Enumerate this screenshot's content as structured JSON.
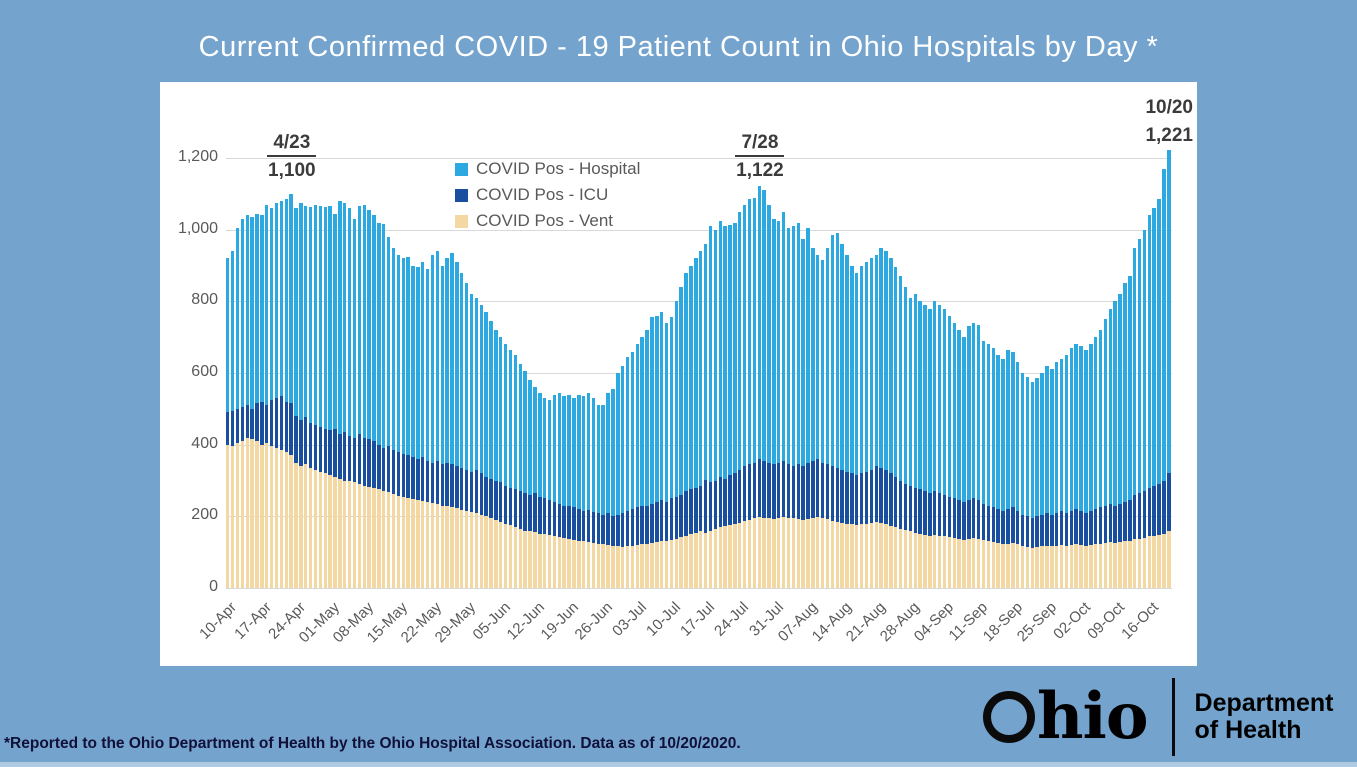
{
  "title": "Current Confirmed COVID - 19 Patient Count in Ohio Hospitals by Day *",
  "footer": {
    "note": "*Reported to the Ohio Department of Health by the Ohio Hospital Association. Data as of 10/20/2020."
  },
  "logo": {
    "brand_o": "O",
    "brand_rest": "hio",
    "dept_line1": "Department",
    "dept_line2": "of Health"
  },
  "colors": {
    "background": "#74A3CE",
    "panel": "#FFFFFF",
    "hospital": "#2CA9E1",
    "icu": "#1A4E9E",
    "vent": "#F3D8A3",
    "gridline": "#D9D9D9",
    "axis_text": "#595959",
    "annotation_text": "#3B3B3B"
  },
  "chart_data": {
    "type": "bar",
    "title": "Current Confirmed COVID - 19 Patient Count in Ohio Hospitals by Day *",
    "xlabel": "",
    "ylabel": "",
    "ylim": [
      0,
      1200
    ],
    "grid": true,
    "legend_position": "top-center-left",
    "bar_mode": "overlaid",
    "y_ticks": [
      "0",
      "200",
      "400",
      "600",
      "800",
      "1,000",
      "1,200"
    ],
    "x_tick_labels": [
      "10-Apr",
      "17-Apr",
      "24-Apr",
      "01-May",
      "08-May",
      "15-May",
      "22-May",
      "29-May",
      "05-Jun",
      "12-Jun",
      "19-Jun",
      "26-Jun",
      "03-Jul",
      "10-Jul",
      "17-Jul",
      "24-Jul",
      "31-Jul",
      "07-Aug",
      "14-Aug",
      "21-Aug",
      "28-Aug",
      "04-Sep",
      "11-Sep",
      "18-Sep",
      "25-Sep",
      "02-Oct",
      "09-Oct",
      "16-Oct"
    ],
    "x_tick_every_n_bars": 7,
    "annotations": [
      {
        "date": "4/23",
        "value": "1,100",
        "bar_index": 13,
        "placement": "on-grid",
        "underline": true
      },
      {
        "date": "7/28",
        "value": "1,122",
        "bar_index": 109,
        "placement": "on-grid",
        "underline": true
      },
      {
        "date": "10/20",
        "value": "1,221",
        "bar_index": 193,
        "placement": "top-right",
        "underline": false
      }
    ],
    "series": [
      {
        "name": "COVID Pos - Hospital",
        "color": "#2CA9E1",
        "values": [
          920,
          940,
          1005,
          1030,
          1040,
          1035,
          1045,
          1040,
          1070,
          1060,
          1075,
          1080,
          1085,
          1100,
          1060,
          1075,
          1065,
          1063,
          1070,
          1066,
          1064,
          1065,
          1045,
          1080,
          1075,
          1060,
          1030,
          1065,
          1070,
          1055,
          1040,
          1020,
          1015,
          980,
          950,
          930,
          920,
          925,
          900,
          895,
          910,
          890,
          930,
          940,
          900,
          920,
          935,
          910,
          880,
          850,
          820,
          810,
          790,
          770,
          745,
          720,
          700,
          680,
          665,
          650,
          625,
          605,
          580,
          560,
          545,
          530,
          525,
          540,
          545,
          535,
          540,
          530,
          540,
          535,
          545,
          530,
          510,
          512,
          545,
          555,
          600,
          620,
          645,
          660,
          680,
          700,
          720,
          755,
          760,
          770,
          740,
          755,
          800,
          840,
          880,
          900,
          920,
          940,
          960,
          1010,
          1000,
          1025,
          1010,
          1012,
          1020,
          1050,
          1070,
          1085,
          1088,
          1122,
          1110,
          1070,
          1030,
          1025,
          1050,
          1005,
          1010,
          1020,
          975,
          1005,
          950,
          930,
          915,
          950,
          985,
          990,
          960,
          930,
          900,
          880,
          900,
          910,
          920,
          930,
          950,
          940,
          920,
          895,
          870,
          840,
          810,
          820,
          800,
          790,
          780,
          800,
          790,
          780,
          760,
          740,
          720,
          700,
          730,
          740,
          735,
          690,
          680,
          670,
          650,
          640,
          665,
          660,
          630,
          600,
          590,
          575,
          585,
          600,
          620,
          610,
          630,
          640,
          650,
          670,
          680,
          675,
          665,
          680,
          700,
          720,
          750,
          780,
          800,
          820,
          850,
          870,
          950,
          975,
          1000,
          1042,
          1060,
          1085,
          1170,
          1221
        ]
      },
      {
        "name": "COVID Pos - ICU",
        "color": "#1A4E9E",
        "values": [
          490,
          495,
          500,
          505,
          510,
          500,
          515,
          520,
          510,
          525,
          530,
          535,
          520,
          515,
          480,
          470,
          478,
          460,
          455,
          450,
          445,
          440,
          445,
          430,
          435,
          425,
          420,
          430,
          420,
          415,
          410,
          400,
          390,
          395,
          385,
          380,
          375,
          370,
          365,
          360,
          365,
          355,
          350,
          355,
          345,
          350,
          345,
          340,
          335,
          330,
          325,
          330,
          320,
          310,
          305,
          300,
          295,
          285,
          280,
          275,
          270,
          265,
          260,
          266,
          255,
          250,
          245,
          240,
          235,
          230,
          228,
          225,
          220,
          215,
          218,
          212,
          208,
          205,
          210,
          200,
          205,
          210,
          215,
          220,
          225,
          230,
          228,
          235,
          240,
          245,
          240,
          250,
          255,
          260,
          270,
          275,
          280,
          285,
          302,
          295,
          300,
          310,
          305,
          315,
          320,
          330,
          340,
          345,
          350,
          360,
          355,
          350,
          345,
          350,
          355,
          345,
          340,
          345,
          340,
          350,
          355,
          360,
          350,
          345,
          340,
          335,
          330,
          325,
          320,
          315,
          320,
          325,
          330,
          340,
          335,
          330,
          320,
          310,
          300,
          290,
          285,
          280,
          275,
          270,
          265,
          270,
          265,
          260,
          255,
          250,
          245,
          240,
          245,
          250,
          245,
          235,
          230,
          225,
          220,
          215,
          220,
          225,
          215,
          205,
          200,
          195,
          200,
          205,
          210,
          205,
          210,
          215,
          210,
          215,
          220,
          215,
          210,
          215,
          220,
          225,
          230,
          235,
          230,
          235,
          240,
          245,
          260,
          265,
          270,
          280,
          285,
          290,
          300,
          320
        ]
      },
      {
        "name": "COVID Pos - Vent",
        "color": "#F3D8A3",
        "values": [
          400,
          395,
          405,
          410,
          420,
          415,
          410,
          400,
          405,
          395,
          390,
          385,
          380,
          370,
          350,
          340,
          345,
          335,
          330,
          325,
          320,
          315,
          310,
          305,
          300,
          298,
          295,
          290,
          285,
          282,
          280,
          275,
          270,
          268,
          262,
          258,
          255,
          252,
          248,
          245,
          242,
          240,
          238,
          235,
          230,
          228,
          225,
          222,
          218,
          215,
          212,
          210,
          205,
          200,
          195,
          190,
          185,
          180,
          175,
          170,
          165,
          160,
          158,
          155,
          152,
          150,
          148,
          145,
          142,
          140,
          138,
          135,
          132,
          130,
          128,
          126,
          124,
          122,
          120,
          118,
          116,
          115,
          116,
          118,
          120,
          122,
          124,
          126,
          128,
          130,
          132,
          135,
          138,
          142,
          146,
          150,
          154,
          158,
          154,
          160,
          165,
          170,
          172,
          175,
          178,
          182,
          186,
          190,
          194,
          198,
          196,
          194,
          192,
          195,
          198,
          196,
          194,
          192,
          190,
          192,
          195,
          198,
          196,
          192,
          188,
          185,
          182,
          180,
          178,
          175,
          178,
          180,
          182,
          185,
          182,
          178,
          174,
          170,
          166,
          162,
          158,
          154,
          150,
          148,
          146,
          148,
          146,
          144,
          142,
          140,
          138,
          135,
          138,
          140,
          138,
          134,
          130,
          128,
          125,
          122,
          124,
          126,
          122,
          118,
          115,
          112,
          114,
          116,
          118,
          116,
          118,
          120,
          118,
          120,
          122,
          120,
          118,
          120,
          122,
          124,
          126,
          128,
          126,
          128,
          130,
          132,
          136,
          138,
          140,
          144,
          146,
          148,
          152,
          160
        ]
      }
    ]
  }
}
